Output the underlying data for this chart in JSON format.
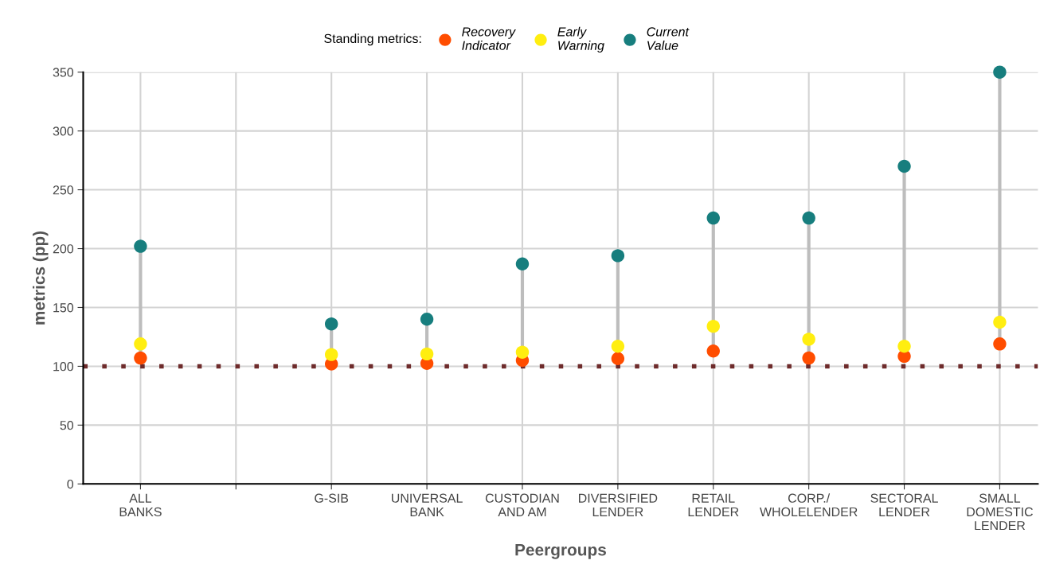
{
  "chart_data": {
    "type": "scatter",
    "xlabel": "Peergroups",
    "ylabel": "metrics (pp)",
    "legend_title": "Standing metrics:",
    "categories": [
      "ALL\nBANKS",
      null,
      "G-SIB",
      "UNIVERSAL\nBANK",
      "CUSTODIAN\nAND AM",
      "DIVERSIFIED\nLENDER",
      "RETAIL\nLENDER",
      "CORP./\nWHOLELENDER",
      "SECTORAL\nLENDER",
      "SMALL\nDOMESTIC\nLENDER"
    ],
    "series": [
      {
        "name": "Recovery\nIndicator",
        "color": "#ff4d00",
        "values": [
          107,
          null,
          102,
          102.5,
          105,
          106.5,
          113,
          107,
          108.5,
          119
        ]
      },
      {
        "name": "Early\nWarning",
        "color": "#ffee10",
        "values": [
          119,
          null,
          110,
          110.5,
          112,
          117,
          134,
          123,
          117,
          137.5
        ]
      },
      {
        "name": "Current\nValue",
        "color": "#177e7e",
        "values": [
          202,
          null,
          136,
          140,
          187,
          194,
          226,
          226,
          270,
          350
        ]
      }
    ],
    "ylim": [
      0,
      350
    ],
    "yticks": [
      0,
      50,
      100,
      150,
      200,
      250,
      300,
      350
    ],
    "ref_lines": [
      {
        "axis": "y",
        "value": 100,
        "color": "#6e2b2b",
        "line_style": "dotted"
      }
    ],
    "grid": true,
    "legend": "top",
    "marker": "circle"
  }
}
